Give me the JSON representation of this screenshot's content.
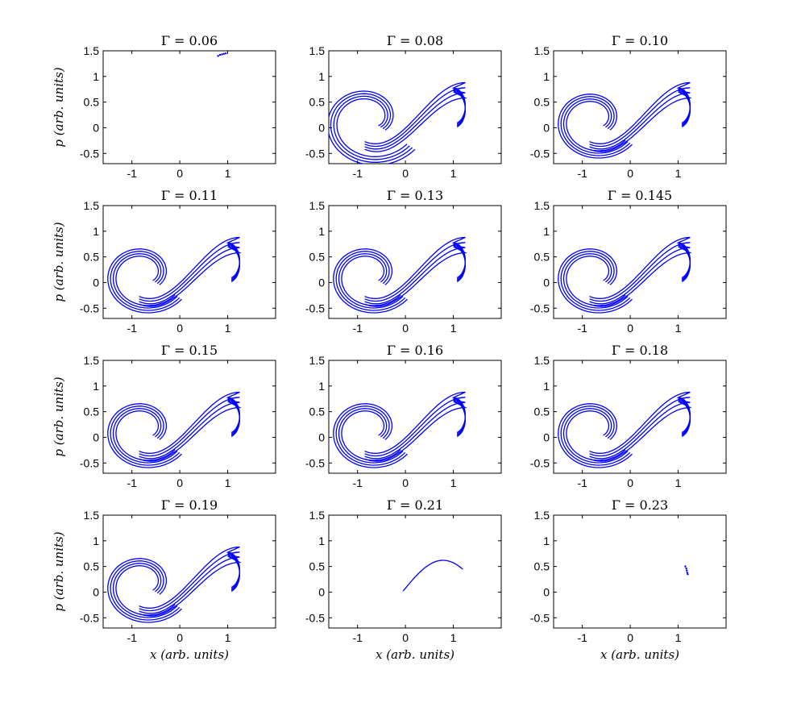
{
  "figure": {
    "x_label": "x (arb. units)",
    "y_label": "p (arb. units)",
    "marker_color": "#0000ff"
  },
  "chart_data": [
    {
      "type": "scatter",
      "title": "Γ = 0.06",
      "xlim": [
        -1.6,
        2.0
      ],
      "ylim": [
        -0.7,
        1.5
      ],
      "xticks": [
        "-1",
        "0",
        "1"
      ],
      "yticks": [
        "-0.5",
        "0",
        "0.5",
        "1",
        "1.5"
      ],
      "attractor": "point",
      "points": [
        [
          0.8,
          1.4
        ],
        [
          0.84,
          1.42
        ],
        [
          0.88,
          1.43
        ],
        [
          0.92,
          1.44
        ],
        [
          0.96,
          1.45
        ]
      ]
    },
    {
      "type": "scatter",
      "title": "Γ = 0.08",
      "xlim": [
        -1.6,
        2.0
      ],
      "ylim": [
        -0.7,
        1.5
      ],
      "xticks": [
        "-1",
        "0",
        "1"
      ],
      "yticks": [
        "-0.5",
        "0",
        "0.5",
        "1",
        "1.5"
      ],
      "attractor": "wide",
      "points": []
    },
    {
      "type": "scatter",
      "title": "Γ = 0.10",
      "xlim": [
        -1.6,
        2.0
      ],
      "ylim": [
        -0.7,
        1.5
      ],
      "xticks": [
        "-1",
        "0",
        "1"
      ],
      "yticks": [
        "-0.5",
        "0",
        "0.5",
        "1",
        "1.5"
      ],
      "attractor": "full",
      "points": []
    },
    {
      "type": "scatter",
      "title": "Γ = 0.11",
      "xlim": [
        -1.6,
        2.0
      ],
      "ylim": [
        -0.7,
        1.5
      ],
      "xticks": [
        "-1",
        "0",
        "1"
      ],
      "yticks": [
        "-0.5",
        "0",
        "0.5",
        "1",
        "1.5"
      ],
      "attractor": "full",
      "points": []
    },
    {
      "type": "scatter",
      "title": "Γ = 0.13",
      "xlim": [
        -1.6,
        2.0
      ],
      "ylim": [
        -0.7,
        1.5
      ],
      "xticks": [
        "-1",
        "0",
        "1"
      ],
      "yticks": [
        "-0.5",
        "0",
        "0.5",
        "1",
        "1.5"
      ],
      "attractor": "full",
      "points": []
    },
    {
      "type": "scatter",
      "title": "Γ = 0.145",
      "xlim": [
        -1.6,
        2.0
      ],
      "ylim": [
        -0.7,
        1.5
      ],
      "xticks": [
        "-1",
        "0",
        "1"
      ],
      "yticks": [
        "-0.5",
        "0",
        "0.5",
        "1",
        "1.5"
      ],
      "attractor": "full",
      "points": []
    },
    {
      "type": "scatter",
      "title": "Γ = 0.15",
      "xlim": [
        -1.6,
        2.0
      ],
      "ylim": [
        -0.7,
        1.5
      ],
      "xticks": [
        "-1",
        "0",
        "1"
      ],
      "yticks": [
        "-0.5",
        "0",
        "0.5",
        "1",
        "1.5"
      ],
      "attractor": "full",
      "points": []
    },
    {
      "type": "scatter",
      "title": "Γ = 0.16",
      "xlim": [
        -1.6,
        2.0
      ],
      "ylim": [
        -0.7,
        1.5
      ],
      "xticks": [
        "-1",
        "0",
        "1"
      ],
      "yticks": [
        "-0.5",
        "0",
        "0.5",
        "1",
        "1.5"
      ],
      "attractor": "full",
      "points": []
    },
    {
      "type": "scatter",
      "title": "Γ = 0.18",
      "xlim": [
        -1.6,
        2.0
      ],
      "ylim": [
        -0.7,
        1.5
      ],
      "xticks": [
        "-1",
        "0",
        "1"
      ],
      "yticks": [
        "-0.5",
        "0",
        "0.5",
        "1",
        "1.5"
      ],
      "attractor": "full",
      "points": []
    },
    {
      "type": "scatter",
      "title": "Γ = 0.19",
      "xlim": [
        -1.6,
        2.0
      ],
      "ylim": [
        -0.7,
        1.5
      ],
      "xticks": [
        "-1",
        "0",
        "1"
      ],
      "yticks": [
        "-0.5",
        "0",
        "0.5",
        "1",
        "1.5"
      ],
      "attractor": "full",
      "points": []
    },
    {
      "type": "scatter",
      "title": "Γ = 0.21",
      "xlim": [
        -1.6,
        2.0
      ],
      "ylim": [
        -0.7,
        1.5
      ],
      "xticks": [
        "-1",
        "0",
        "1"
      ],
      "yticks": [
        "-0.5",
        "0",
        "0.5",
        "1",
        "1.5"
      ],
      "attractor": "arc",
      "points": []
    },
    {
      "type": "scatter",
      "title": "Γ = 0.23",
      "xlim": [
        -1.6,
        2.0
      ],
      "ylim": [
        -0.7,
        1.5
      ],
      "xticks": [
        "-1",
        "0",
        "1"
      ],
      "yticks": [
        "-0.5",
        "0",
        "0.5",
        "1",
        "1.5"
      ],
      "attractor": "point",
      "points": [
        [
          1.15,
          0.5
        ],
        [
          1.17,
          0.46
        ],
        [
          1.18,
          0.42
        ],
        [
          1.19,
          0.38
        ],
        [
          1.2,
          0.35
        ]
      ]
    }
  ]
}
